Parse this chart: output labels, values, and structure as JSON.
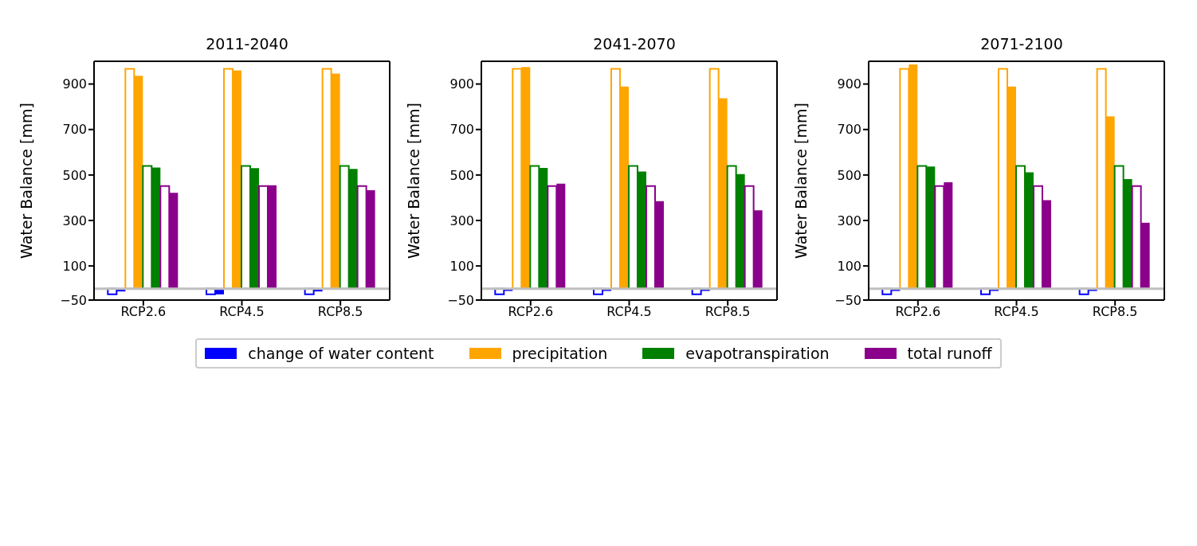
{
  "chart_data": [
    {
      "type": "bar",
      "title": "2011-2040",
      "ylabel": "Water Balance [mm]",
      "categories": [
        "RCP2.6",
        "RCP4.5",
        "RCP8.5"
      ],
      "ylim": [
        -50,
        1000
      ],
      "yticks": [
        -50,
        100,
        300,
        500,
        700,
        900
      ],
      "grid": false,
      "legend": "bottom",
      "ref_lines": [
        {
          "axis": "y",
          "value": 0,
          "color": "#bfbfbf"
        }
      ],
      "series": [
        {
          "color": "#0000ff",
          "values": [
            -25,
            -25,
            -25
          ]
        },
        {
          "name": "change of water content",
          "color": "#0000ff",
          "values": [
            -12,
            -25,
            -12
          ]
        },
        {
          "color": "#ffa500",
          "values": [
            967,
            967,
            967
          ]
        },
        {
          "name": "precipitation",
          "color": "#ffa500",
          "values": [
            936,
            960,
            946
          ]
        },
        {
          "color": "#008000",
          "values": [
            540,
            540,
            540
          ]
        },
        {
          "name": "evapotranspiration",
          "color": "#008000",
          "values": [
            533,
            530,
            527
          ]
        },
        {
          "color": "#8b008b",
          "values": [
            451,
            451,
            451
          ]
        },
        {
          "name": "total runoff",
          "color": "#8b008b",
          "values": [
            422,
            455,
            433
          ]
        }
      ]
    },
    {
      "type": "bar",
      "title": "2041-2070",
      "ylabel": "Water Balance [mm]",
      "categories": [
        "RCP2.6",
        "RCP4.5",
        "RCP8.5"
      ],
      "ylim": [
        -50,
        1000
      ],
      "yticks": [
        -50,
        100,
        300,
        500,
        700,
        900
      ],
      "grid": false,
      "ref_lines": [
        {
          "axis": "y",
          "value": 0,
          "color": "#bfbfbf"
        }
      ],
      "series": [
        {
          "color": "#0000ff",
          "values": [
            -25,
            -25,
            -25
          ]
        },
        {
          "name": "change of water content",
          "color": "#0000ff",
          "values": [
            -10,
            -10,
            -10
          ]
        },
        {
          "color": "#ffa500",
          "values": [
            967,
            967,
            967
          ]
        },
        {
          "name": "precipitation",
          "color": "#ffa500",
          "values": [
            975,
            889,
            837
          ]
        },
        {
          "color": "#008000",
          "values": [
            540,
            540,
            540
          ]
        },
        {
          "name": "evapotranspiration",
          "color": "#008000",
          "values": [
            531,
            515,
            504
          ]
        },
        {
          "color": "#8b008b",
          "values": [
            451,
            451,
            451
          ]
        },
        {
          "name": "total runoff",
          "color": "#8b008b",
          "values": [
            462,
            385,
            345
          ]
        }
      ]
    },
    {
      "type": "bar",
      "title": "2071-2100",
      "ylabel": "Water Balance [mm]",
      "categories": [
        "RCP2.6",
        "RCP4.5",
        "RCP8.5"
      ],
      "ylim": [
        -50,
        1000
      ],
      "yticks": [
        -50,
        100,
        300,
        500,
        700,
        900
      ],
      "grid": false,
      "ref_lines": [
        {
          "axis": "y",
          "value": 0,
          "color": "#bfbfbf"
        }
      ],
      "series": [
        {
          "color": "#0000ff",
          "values": [
            -25,
            -25,
            -25
          ]
        },
        {
          "name": "change of water content",
          "color": "#0000ff",
          "values": [
            -10,
            -10,
            -10
          ]
        },
        {
          "color": "#ffa500",
          "values": [
            967,
            967,
            967
          ]
        },
        {
          "name": "precipitation",
          "color": "#ffa500",
          "values": [
            986,
            889,
            758
          ]
        },
        {
          "color": "#008000",
          "values": [
            540,
            540,
            540
          ]
        },
        {
          "name": "evapotranspiration",
          "color": "#008000",
          "values": [
            537,
            512,
            482
          ]
        },
        {
          "color": "#8b008b",
          "values": [
            451,
            451,
            451
          ]
        },
        {
          "name": "total runoff",
          "color": "#8b008b",
          "values": [
            468,
            389,
            290
          ]
        }
      ]
    }
  ]
}
